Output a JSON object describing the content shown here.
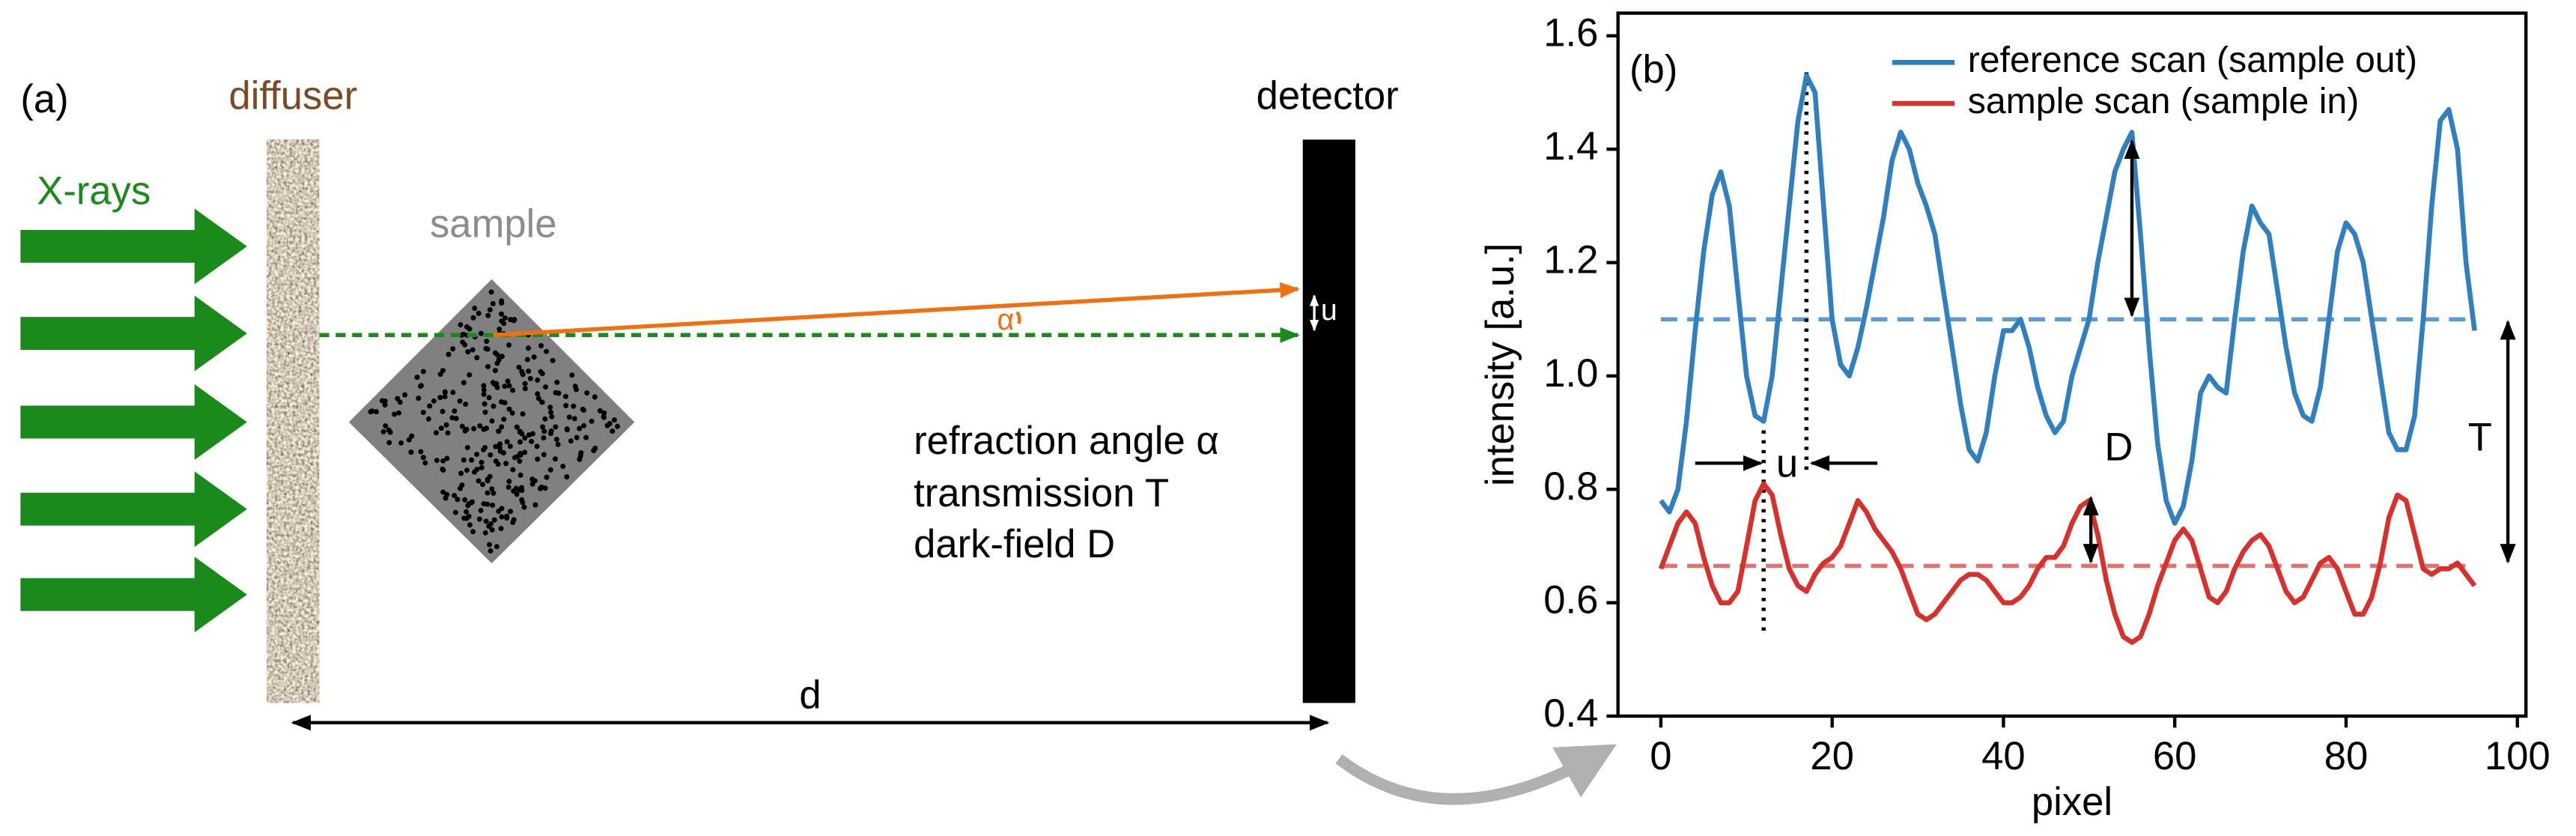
{
  "diagram": {
    "panel_label": "(a)",
    "diffuser": "diffuser",
    "source": "X-rays",
    "sample": "sample",
    "detector": "detector",
    "angle": "α",
    "shift": "u",
    "legend_lines": [
      "refraction angle α",
      "transmission T",
      "dark-field D"
    ],
    "distance": "d"
  },
  "chart_data": {
    "type": "line",
    "annotations": [
      "(b)",
      "u",
      "D",
      "T"
    ],
    "x_label": "pixel",
    "y_label": "intensity [a.u.]",
    "x": [
      0,
      1,
      2,
      3,
      4,
      5,
      6,
      7,
      8,
      9,
      10,
      11,
      12,
      13,
      14,
      15,
      16,
      17,
      18,
      19,
      20,
      21,
      22,
      23,
      24,
      25,
      26,
      27,
      28,
      29,
      30,
      31,
      32,
      33,
      34,
      35,
      36,
      37,
      38,
      39,
      40,
      41,
      42,
      43,
      44,
      45,
      46,
      47,
      48,
      49,
      50,
      51,
      52,
      53,
      54,
      55,
      56,
      57,
      58,
      59,
      60,
      61,
      62,
      63,
      64,
      65,
      66,
      67,
      68,
      69,
      70,
      71,
      72,
      73,
      74,
      75,
      76,
      77,
      78,
      79,
      80,
      81,
      82,
      83,
      84,
      85,
      86,
      87,
      88,
      89,
      90,
      91,
      92,
      93,
      94,
      95
    ],
    "series": [
      {
        "name": "reference scan (sample out)",
        "color": "#2f7fc1",
        "values": [
          0.78,
          0.76,
          0.8,
          0.92,
          1.08,
          1.22,
          1.32,
          1.36,
          1.3,
          1.15,
          1.0,
          0.93,
          0.92,
          1.0,
          1.15,
          1.3,
          1.45,
          1.53,
          1.5,
          1.3,
          1.1,
          1.02,
          1.0,
          1.05,
          1.12,
          1.2,
          1.28,
          1.38,
          1.43,
          1.4,
          1.34,
          1.3,
          1.25,
          1.15,
          1.05,
          0.95,
          0.87,
          0.85,
          0.9,
          1.0,
          1.08,
          1.08,
          1.1,
          1.05,
          0.98,
          0.93,
          0.9,
          0.92,
          1.0,
          1.05,
          1.1,
          1.2,
          1.28,
          1.36,
          1.4,
          1.43,
          1.25,
          1.05,
          0.88,
          0.78,
          0.74,
          0.77,
          0.85,
          0.97,
          1.0,
          0.98,
          0.97,
          1.1,
          1.22,
          1.3,
          1.27,
          1.25,
          1.15,
          1.05,
          0.97,
          0.93,
          0.92,
          0.98,
          1.1,
          1.22,
          1.27,
          1.25,
          1.2,
          1.1,
          1.0,
          0.9,
          0.87,
          0.87,
          0.93,
          1.1,
          1.3,
          1.45,
          1.47,
          1.4,
          1.2,
          1.08
        ]
      },
      {
        "name": "sample scan (sample in)",
        "color": "#d9302c",
        "values": [
          0.66,
          0.7,
          0.74,
          0.76,
          0.74,
          0.68,
          0.63,
          0.6,
          0.6,
          0.62,
          0.7,
          0.78,
          0.81,
          0.79,
          0.72,
          0.66,
          0.63,
          0.62,
          0.65,
          0.67,
          0.68,
          0.7,
          0.74,
          0.78,
          0.76,
          0.73,
          0.71,
          0.69,
          0.66,
          0.62,
          0.58,
          0.57,
          0.58,
          0.6,
          0.62,
          0.64,
          0.65,
          0.65,
          0.64,
          0.62,
          0.6,
          0.6,
          0.61,
          0.63,
          0.66,
          0.68,
          0.68,
          0.7,
          0.74,
          0.77,
          0.78,
          0.72,
          0.64,
          0.58,
          0.54,
          0.53,
          0.54,
          0.58,
          0.63,
          0.67,
          0.71,
          0.73,
          0.71,
          0.66,
          0.61,
          0.6,
          0.62,
          0.66,
          0.69,
          0.71,
          0.72,
          0.7,
          0.66,
          0.62,
          0.6,
          0.61,
          0.64,
          0.67,
          0.68,
          0.66,
          0.62,
          0.58,
          0.58,
          0.61,
          0.67,
          0.75,
          0.79,
          0.78,
          0.72,
          0.66,
          0.65,
          0.66,
          0.66,
          0.67,
          0.65,
          0.63
        ]
      }
    ],
    "reference_lines": [
      {
        "value": 1.1,
        "color": "#5b9bd5"
      },
      {
        "value": 0.665,
        "color": "#e27272"
      }
    ],
    "vlines": [
      12,
      17
    ],
    "xlim": [
      -5,
      101
    ],
    "ylim": [
      0.4,
      1.64
    ],
    "xticks": [
      0,
      20,
      40,
      60,
      80,
      100
    ],
    "yticks": [
      0.4,
      0.6,
      0.8,
      {
        "value": 1,
        "label": "1.0"
      },
      1.2,
      1.4,
      1.6
    ],
    "legend": "upper right"
  }
}
